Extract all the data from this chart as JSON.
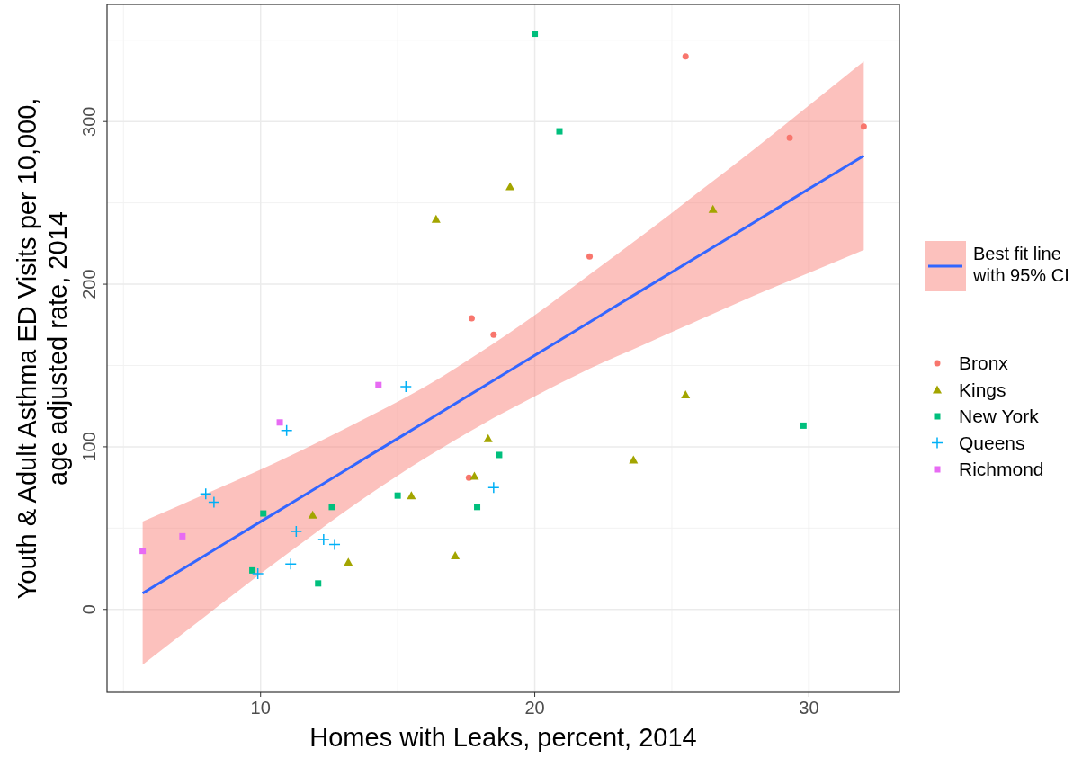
{
  "chart_data": {
    "type": "scatter",
    "xlabel": "Homes with Leaks, percent, 2014",
    "ylabel": "Youth & Adult Asthma ED Visits per 10,000,\nage adjusted rate, 2014",
    "xlim": [
      4.4,
      33.3
    ],
    "ylim": [
      -51,
      372
    ],
    "xticks": [
      10,
      20,
      30
    ],
    "yticks": [
      0,
      100,
      200,
      300
    ],
    "grid": true,
    "legend": "right",
    "series": [
      {
        "type": "line",
        "name": "Best fit line with 95% CI",
        "color": "#3366ff",
        "line_style": "solid",
        "x": [
          5.7,
          8,
          10,
          12,
          14,
          16,
          18,
          20,
          22,
          24,
          26,
          28,
          30,
          32
        ],
        "values": [
          10,
          33.5,
          54,
          74.4,
          94.9,
          115.3,
          135.8,
          156.2,
          176.7,
          197.2,
          217.6,
          238,
          258.6,
          279
        ],
        "lower": [
          -34,
          -4,
          22,
          47,
          71,
          93,
          113,
          131,
          148,
          163,
          178,
          193,
          207,
          221
        ],
        "upper": [
          54,
          71,
          86,
          102,
          119,
          137,
          158,
          181,
          206,
          231,
          257,
          283,
          310,
          337
        ]
      },
      {
        "name": "Bronx",
        "color": "#f8766d",
        "marker": "circle",
        "x": [
          25.5,
          32.0,
          29.3,
          22.0,
          17.7,
          18.5,
          17.6
        ],
        "values": [
          340,
          297,
          290,
          217,
          179,
          169,
          81
        ]
      },
      {
        "name": "Kings",
        "color": "#a3a500",
        "marker": "triangle",
        "x": [
          16.4,
          19.1,
          26.5,
          25.5,
          18.3,
          17.8,
          23.6,
          15.5,
          11.9,
          13.2,
          17.1
        ],
        "values": [
          240,
          260,
          246,
          132,
          105,
          82,
          92,
          70,
          58,
          29,
          33
        ]
      },
      {
        "name": "New York",
        "color": "#00bf7d",
        "marker": "square",
        "x": [
          20.0,
          20.9,
          29.8,
          18.7,
          17.9,
          15.0,
          12.6,
          10.1,
          9.7,
          12.1
        ],
        "values": [
          354,
          294,
          113,
          95,
          63,
          70,
          63,
          59,
          24,
          16
        ]
      },
      {
        "name": "Queens",
        "color": "#00b0f6",
        "marker": "cross",
        "x": [
          15.3,
          10.95,
          8.0,
          8.3,
          11.3,
          12.3,
          12.7,
          11.1,
          9.9,
          18.5
        ],
        "values": [
          137,
          110,
          71,
          66,
          48,
          43,
          40,
          28,
          22,
          75
        ]
      },
      {
        "name": "Richmond",
        "color": "#e76bf3",
        "marker": "square",
        "x": [
          14.3,
          10.7,
          7.15,
          5.7
        ],
        "values": [
          138,
          115,
          45,
          36
        ]
      }
    ]
  }
}
